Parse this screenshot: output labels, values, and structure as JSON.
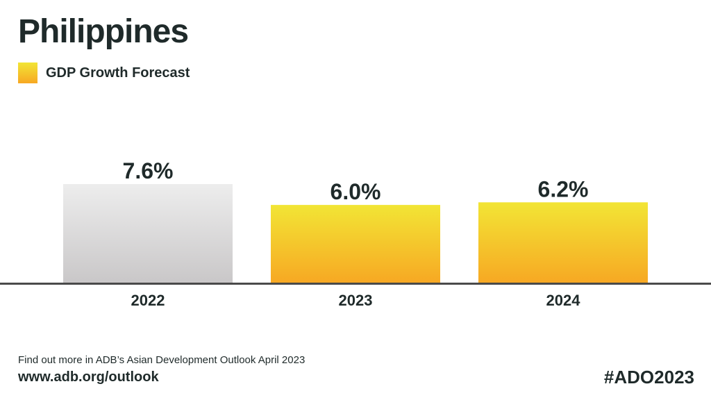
{
  "title": "Philippines",
  "legend": {
    "label": "GDP Growth Forecast"
  },
  "chart_data": {
    "type": "bar",
    "categories": [
      "2022",
      "2023",
      "2024"
    ],
    "values": [
      7.6,
      6.0,
      6.2
    ],
    "value_labels": [
      "7.6%",
      "6.0%",
      "6.2%"
    ],
    "series": [
      {
        "name": "GDP Growth Forecast",
        "values": [
          7.6,
          6.0,
          6.2
        ]
      }
    ],
    "title": "Philippines",
    "xlabel": "",
    "ylabel": "",
    "ylim": [
      0,
      7.6
    ],
    "grid": false,
    "legend_position": "top-left",
    "colors": {
      "actual": "#d9d8d9",
      "forecast_top": "#f2e535",
      "forecast_bottom": "#f7a823",
      "baseline": "#4a4a4a"
    }
  },
  "footer": {
    "note": "Find out more in ADB’s Asian Development Outlook April 2023",
    "link": "www.adb.org/outlook",
    "hashtag": "#ADO2023"
  }
}
